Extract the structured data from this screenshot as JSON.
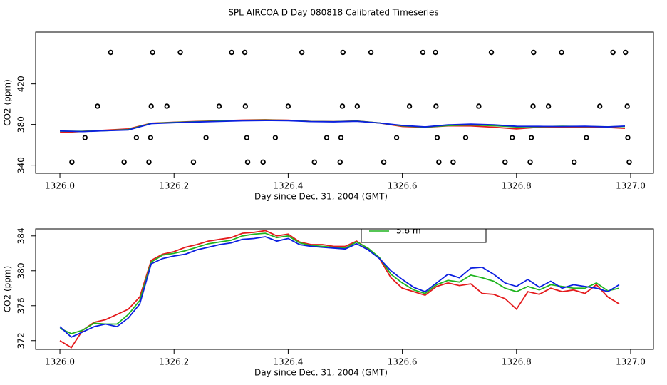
{
  "title": "SPL AIRCOA D  Day 080818  Calibrated Timeseries",
  "chart_data": [
    {
      "type": "line",
      "xlabel": "Day since Dec. 31, 2004 (GMT)",
      "ylabel": "CO2 (ppm)",
      "xlim": [
        1325.9575,
        1327.04
      ],
      "ylim": [
        332,
        471
      ],
      "xticks": [
        {
          "value": 1326,
          "label": "1326.0"
        },
        1326.2,
        1326.4,
        1326.6,
        1326.8,
        {
          "value": 1327,
          "label": "1327.0"
        }
      ],
      "yticks": [
        340,
        380,
        420
      ],
      "x": [
        1326.0,
        1326.04,
        1326.08,
        1326.12,
        1326.16,
        1326.2,
        1326.24,
        1326.28,
        1326.32,
        1326.36,
        1326.4,
        1326.44,
        1326.48,
        1326.52,
        1326.56,
        1326.6,
        1326.64,
        1326.68,
        1326.72,
        1326.76,
        1326.8,
        1326.84,
        1326.88,
        1326.92,
        1326.96,
        1326.99
      ],
      "series": [
        {
          "color": "#e41a1c",
          "values": [
            372.0,
            373.2,
            374.4,
            375.6,
            381.2,
            382.2,
            383.0,
            383.6,
            384.3,
            384.6,
            384.2,
            383.0,
            382.8,
            383.4,
            381.4,
            378.0,
            377.2,
            378.6,
            378.5,
            377.3,
            375.6,
            377.3,
            377.6,
            377.4,
            377.0,
            376.2
          ]
        },
        {
          "color": "#1fb41f",
          "values": [
            373.4,
            373.2,
            373.9,
            375.0,
            381.0,
            382.0,
            382.7,
            383.3,
            384.0,
            384.3,
            384.0,
            382.9,
            382.7,
            383.3,
            381.5,
            378.6,
            377.4,
            378.9,
            379.5,
            378.8,
            377.6,
            377.8,
            378.2,
            378.0,
            377.7,
            378.0
          ]
        },
        {
          "color": "#0b1fe0",
          "values": [
            373.6,
            373.0,
            373.9,
            374.6,
            380.8,
            381.7,
            382.4,
            383.0,
            383.6,
            383.9,
            383.7,
            382.8,
            382.6,
            383.1,
            381.4,
            379.0,
            377.6,
            379.6,
            380.3,
            379.6,
            378.2,
            378.1,
            378.0,
            378.2,
            377.6,
            378.4
          ]
        }
      ],
      "markers": {
        "color": "#000000",
        "x": [
          1326.089,
          1326.1625,
          1326.211,
          1326.301,
          1326.324,
          1326.424,
          1326.496,
          1326.545,
          1326.636,
          1326.658,
          1326.756,
          1326.83,
          1326.879,
          1326.969,
          1326.991,
          1326.066,
          1326.16,
          1326.1875,
          1326.279,
          1326.325,
          1326.4,
          1326.495,
          1326.521,
          1326.6125,
          1326.659,
          1326.734,
          1326.829,
          1326.856,
          1326.946,
          1326.994,
          1326.044,
          1326.134,
          1326.159,
          1326.256,
          1326.3275,
          1326.3775,
          1326.4675,
          1326.4925,
          1326.59,
          1326.661,
          1326.711,
          1326.7925,
          1326.826,
          1326.9225,
          1326.995,
          1326.021,
          1326.1125,
          1326.156,
          1326.234,
          1326.329,
          1326.356,
          1326.446,
          1326.491,
          1326.5675,
          1326.664,
          1326.689,
          1326.78,
          1326.824,
          1326.901,
          1326.9975
        ],
        "y": [
          451,
          451,
          451,
          451,
          451,
          451,
          451,
          451,
          451,
          451,
          451,
          451,
          451,
          451,
          451,
          398,
          398,
          398,
          398,
          398,
          398,
          398,
          398,
          398,
          398,
          398,
          398,
          398,
          398,
          398,
          367,
          367,
          367,
          367,
          367,
          367,
          367,
          367,
          367,
          367,
          367,
          367,
          367,
          367,
          367,
          343,
          343,
          343,
          343,
          343,
          343,
          343,
          343,
          343,
          343,
          343,
          343,
          343,
          343,
          343
        ]
      }
    },
    {
      "type": "line",
      "xlabel": "Day since Dec. 31, 2004 (GMT)",
      "ylabel": "CO2 (ppm)",
      "xlim": [
        1325.9575,
        1327.04
      ],
      "ylim": [
        371.0,
        384.8
      ],
      "xticks": [
        {
          "value": 1326,
          "label": "1326.0"
        },
        1326.2,
        1326.4,
        1326.6,
        1326.8,
        {
          "value": 1327,
          "label": "1327.0"
        }
      ],
      "yticks": [
        372,
        376,
        380,
        384
      ],
      "x": [
        1326.0,
        1326.02,
        1326.04,
        1326.06,
        1326.08,
        1326.1,
        1326.12,
        1326.14,
        1326.16,
        1326.18,
        1326.2,
        1326.22,
        1326.24,
        1326.26,
        1326.28,
        1326.3,
        1326.32,
        1326.34,
        1326.36,
        1326.38,
        1326.4,
        1326.42,
        1326.44,
        1326.46,
        1326.48,
        1326.5,
        1326.52,
        1326.54,
        1326.56,
        1326.58,
        1326.6,
        1326.62,
        1326.64,
        1326.66,
        1326.68,
        1326.7,
        1326.72,
        1326.74,
        1326.76,
        1326.78,
        1326.8,
        1326.82,
        1326.84,
        1326.86,
        1326.88,
        1326.9,
        1326.92,
        1326.94,
        1326.96,
        1326.98
      ],
      "series": [
        {
          "color": "#e41a1c",
          "values": [
            372.0,
            371.2,
            373.2,
            374.1,
            374.4,
            375.0,
            375.6,
            377.0,
            381.2,
            381.9,
            382.2,
            382.7,
            383.0,
            383.4,
            383.6,
            383.8,
            384.3,
            384.4,
            384.6,
            384.0,
            384.2,
            383.3,
            383.0,
            383.0,
            382.8,
            382.8,
            383.4,
            382.5,
            381.4,
            379.2,
            378.0,
            377.6,
            377.2,
            378.2,
            378.6,
            378.3,
            378.5,
            377.4,
            377.3,
            376.8,
            375.6,
            377.6,
            377.3,
            378.0,
            377.6,
            377.8,
            377.4,
            378.4,
            377.0,
            376.2
          ]
        },
        {
          "name": "5.8 m",
          "color": "#1fb41f",
          "values": [
            373.4,
            372.8,
            373.2,
            374.0,
            373.9,
            373.9,
            375.0,
            376.6,
            381.0,
            381.8,
            382.0,
            382.3,
            382.7,
            383.1,
            383.3,
            383.5,
            384.0,
            384.2,
            384.3,
            383.8,
            384.0,
            383.2,
            382.9,
            382.8,
            382.7,
            382.6,
            383.3,
            382.6,
            381.5,
            379.6,
            378.6,
            377.8,
            377.4,
            378.4,
            378.9,
            378.7,
            379.5,
            379.2,
            378.8,
            378.0,
            377.6,
            378.2,
            377.8,
            378.4,
            378.2,
            378.0,
            378.0,
            378.6,
            377.7,
            378.0
          ]
        },
        {
          "color": "#0b1fe0",
          "values": [
            373.6,
            372.4,
            373.0,
            373.6,
            373.9,
            373.6,
            374.6,
            376.2,
            380.8,
            381.4,
            381.7,
            381.9,
            382.4,
            382.7,
            383.0,
            383.2,
            383.6,
            383.7,
            383.9,
            383.4,
            383.7,
            383.0,
            382.8,
            382.7,
            382.6,
            382.5,
            383.1,
            382.4,
            381.4,
            380.0,
            379.0,
            378.1,
            377.6,
            378.6,
            379.6,
            379.2,
            380.3,
            380.4,
            379.6,
            378.6,
            378.2,
            379.0,
            378.1,
            378.8,
            378.0,
            378.4,
            378.2,
            378.0,
            377.6,
            378.4
          ]
        }
      ]
    }
  ]
}
